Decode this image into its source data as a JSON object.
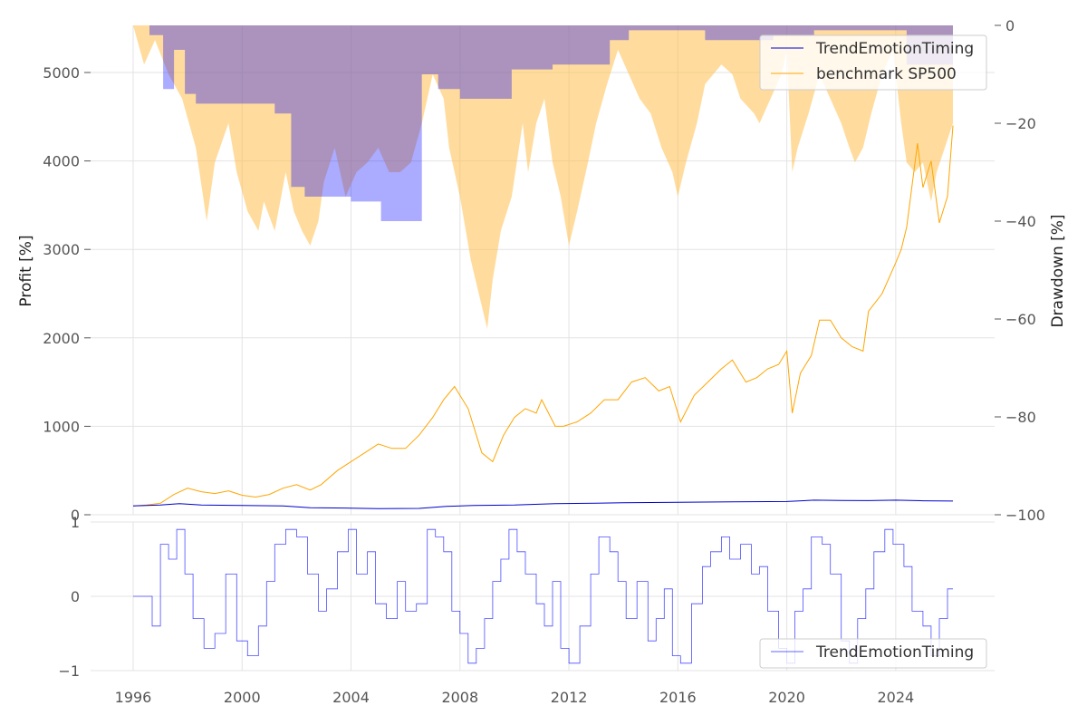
{
  "chart_data": [
    {
      "type": "line",
      "panel": "top",
      "ylabel_left": "Profit [%]",
      "ylabel_right": "Drawdown [%]",
      "ylim_left": [
        0,
        5500
      ],
      "yticks_left": [
        0,
        1000,
        2000,
        3000,
        4000,
        5000
      ],
      "ytick_labels_left": [
        "0",
        "1000",
        "2000",
        "3000",
        "4000",
        "5000"
      ],
      "ylim_right": [
        -100,
        0
      ],
      "yticks_right": [
        0,
        -20,
        -40,
        -60,
        -80,
        -100
      ],
      "ytick_labels_right": [
        "0",
        "−20",
        "−40",
        "−60",
        "−80",
        "−100"
      ],
      "xlim": [
        1996.0,
        2026.1
      ],
      "legend": "top-right",
      "series": [
        {
          "name": "TrendEmotionTiming",
          "color": "#0000cc",
          "x": [
            1996.0,
            1997.0,
            1997.7,
            1998.5,
            2000.0,
            2001.5,
            2002.5,
            2004.0,
            2005.0,
            2006.5,
            2007.5,
            2008.5,
            2010.0,
            2011.5,
            2013.0,
            2014.0,
            2016.0,
            2018.0,
            2020.0,
            2021.0,
            2022.0,
            2023.0,
            2024.0,
            2025.0,
            2026.1
          ],
          "values": [
            100,
            110,
            125,
            110,
            105,
            100,
            80,
            75,
            70,
            72,
            95,
            105,
            110,
            125,
            130,
            135,
            140,
            145,
            150,
            165,
            162,
            160,
            165,
            158,
            155
          ]
        },
        {
          "name": "benchmark SP500",
          "color": "#ffa500",
          "x": [
            1996.0,
            1996.5,
            1997.0,
            1997.5,
            1998.0,
            1998.5,
            1999.0,
            1999.5,
            2000.0,
            2000.5,
            2001.0,
            2001.5,
            2002.0,
            2002.5,
            2002.9,
            2003.5,
            2004.0,
            2004.5,
            2005.0,
            2005.5,
            2006.0,
            2006.5,
            2007.0,
            2007.4,
            2007.8,
            2008.3,
            2008.8,
            2009.2,
            2009.6,
            2010.0,
            2010.4,
            2010.8,
            2011.0,
            2011.5,
            2011.8,
            2012.3,
            2012.8,
            2013.3,
            2013.8,
            2014.3,
            2014.8,
            2015.3,
            2015.7,
            2016.1,
            2016.6,
            2017.1,
            2017.6,
            2018.0,
            2018.5,
            2018.9,
            2019.3,
            2019.7,
            2020.0,
            2020.2,
            2020.5,
            2020.9,
            2021.2,
            2021.6,
            2022.0,
            2022.4,
            2022.8,
            2023.0,
            2023.5,
            2024.0,
            2024.2,
            2024.4,
            2024.8,
            2025.0,
            2025.3,
            2025.6,
            2025.9,
            2026.1
          ],
          "values": [
            100,
            110,
            130,
            230,
            300,
            260,
            240,
            270,
            220,
            200,
            230,
            300,
            340,
            280,
            340,
            500,
            600,
            700,
            800,
            750,
            750,
            900,
            1100,
            1300,
            1450,
            1200,
            700,
            600,
            900,
            1100,
            1200,
            1150,
            1300,
            1000,
            1000,
            1050,
            1150,
            1300,
            1300,
            1500,
            1550,
            1400,
            1450,
            1050,
            1350,
            1500,
            1650,
            1750,
            1500,
            1550,
            1650,
            1700,
            1850,
            1150,
            1600,
            1800,
            2200,
            2200,
            2000,
            1900,
            1850,
            2300,
            2500,
            2850,
            3000,
            3250,
            4200,
            3700,
            4000,
            3300,
            3600,
            4400
          ]
        },
        {
          "name": "TrendEmotionTiming drawdown",
          "legend": false,
          "color": "#0000ff",
          "axis": "right",
          "x": [
            1996.0,
            1996.6,
            1996.6,
            1997.1,
            1997.1,
            1997.5,
            1997.5,
            1997.9,
            1997.9,
            1998.3,
            1998.3,
            2001.2,
            2001.2,
            2001.8,
            2001.8,
            2002.3,
            2002.3,
            2002.8,
            2002.8,
            2004.0,
            2004.0,
            2005.1,
            2005.1,
            2006.6,
            2006.6,
            2007.2,
            2007.2,
            2008.0,
            2008.0,
            2009.9,
            2009.9,
            2011.4,
            2011.4,
            2013.5,
            2013.5,
            2014.2,
            2014.2,
            2017.0,
            2017.0,
            2019.5,
            2019.5,
            2021.0,
            2021.0,
            2024.4,
            2024.4,
            2026.1
          ],
          "values": [
            0,
            0,
            -2,
            -2,
            -13,
            -13,
            -5,
            -5,
            -14,
            -14,
            -16,
            -16,
            -18,
            -18,
            -33,
            -33,
            -35,
            -35,
            -35,
            -35,
            -36,
            -36,
            -40,
            -40,
            -10,
            -10,
            -13,
            -13,
            -15,
            -15,
            -9,
            -9,
            -8,
            -8,
            -3,
            -3,
            -1,
            -1,
            -3,
            -3,
            -2,
            -2,
            -1,
            -1,
            -8,
            -8
          ]
        },
        {
          "name": "benchmark SP500 drawdown",
          "legend": false,
          "color": "#ffc04d",
          "axis": "right",
          "x": [
            1996.0,
            1996.4,
            1996.8,
            1997.3,
            1997.8,
            1998.3,
            1998.7,
            1999.0,
            1999.5,
            1999.8,
            2000.2,
            2000.6,
            2000.8,
            2001.2,
            2001.6,
            2001.9,
            2002.2,
            2002.5,
            2002.8,
            2003.0,
            2003.4,
            2003.8,
            2004.2,
            2004.6,
            2005.0,
            2005.4,
            2005.8,
            2006.2,
            2006.6,
            2007.0,
            2007.4,
            2007.6,
            2008.0,
            2008.4,
            2008.7,
            2009.0,
            2009.2,
            2009.5,
            2009.9,
            2010.3,
            2010.5,
            2010.8,
            2011.1,
            2011.4,
            2011.7,
            2012.0,
            2012.3,
            2012.7,
            2013.0,
            2013.4,
            2013.8,
            2014.2,
            2014.6,
            2015.0,
            2015.4,
            2015.8,
            2016.0,
            2016.3,
            2016.7,
            2017.0,
            2017.6,
            2018.0,
            2018.3,
            2018.8,
            2019.0,
            2019.4,
            2019.8,
            2020.0,
            2020.2,
            2020.4,
            2020.8,
            2021.2,
            2021.6,
            2022.0,
            2022.3,
            2022.5,
            2022.8,
            2023.1,
            2023.5,
            2023.9,
            2024.2,
            2024.4,
            2024.7,
            2025.0,
            2025.3,
            2025.5,
            2025.8,
            2026.1
          ],
          "values": [
            0,
            -8,
            -3,
            -10,
            -15,
            -25,
            -40,
            -28,
            -20,
            -30,
            -38,
            -42,
            -36,
            -42,
            -30,
            -38,
            -42,
            -45,
            -40,
            -32,
            -25,
            -35,
            -30,
            -28,
            -25,
            -30,
            -30,
            -28,
            -20,
            -10,
            -15,
            -25,
            -35,
            -48,
            -55,
            -62,
            -52,
            -42,
            -35,
            -20,
            -30,
            -20,
            -15,
            -28,
            -35,
            -45,
            -38,
            -28,
            -20,
            -12,
            -5,
            -10,
            -15,
            -18,
            -25,
            -30,
            -35,
            -28,
            -20,
            -12,
            -8,
            -10,
            -15,
            -18,
            -20,
            -15,
            -10,
            -5,
            -30,
            -25,
            -18,
            -10,
            -15,
            -20,
            -25,
            -28,
            -25,
            -18,
            -10,
            -5,
            -20,
            -28,
            -30,
            -28,
            -36,
            -30,
            -25,
            -20
          ]
        }
      ],
      "drawdown_fill_colors": {
        "strategy": "#aaaaff",
        "benchmark": "#ffe0aa",
        "overlap": "#c4a8ac"
      }
    },
    {
      "type": "line",
      "panel": "bottom",
      "ylim": [
        -1,
        1
      ],
      "yticks": [
        -1,
        0,
        1
      ],
      "ytick_labels": [
        "−1",
        "0",
        "1"
      ],
      "xlim": [
        1996.0,
        2026.1
      ],
      "xticks": [
        1996,
        2000,
        2004,
        2008,
        2012,
        2016,
        2020,
        2024
      ],
      "xtick_labels": [
        "1996",
        "2000",
        "2004",
        "2008",
        "2012",
        "2016",
        "2020",
        "2024"
      ],
      "legend": "bottom-right",
      "series": [
        {
          "name": "TrendEmotionTiming",
          "color": "#0000ff",
          "x": [
            1996.0,
            1996.5,
            1996.7,
            1997.0,
            1997.3,
            1997.6,
            1997.9,
            1998.2,
            1998.6,
            1999.0,
            1999.4,
            1999.8,
            2000.2,
            2000.6,
            2000.9,
            2001.2,
            2001.6,
            2002.0,
            2002.4,
            2002.8,
            2003.1,
            2003.5,
            2003.9,
            2004.2,
            2004.6,
            2004.9,
            2005.3,
            2005.7,
            2006.0,
            2006.4,
            2006.8,
            2007.1,
            2007.4,
            2007.7,
            2008.0,
            2008.3,
            2008.6,
            2008.9,
            2009.2,
            2009.5,
            2009.8,
            2010.1,
            2010.4,
            2010.8,
            2011.1,
            2011.4,
            2011.7,
            2012.0,
            2012.4,
            2012.8,
            2013.1,
            2013.5,
            2013.8,
            2014.1,
            2014.5,
            2014.9,
            2015.2,
            2015.5,
            2015.8,
            2016.1,
            2016.5,
            2016.9,
            2017.2,
            2017.6,
            2017.9,
            2018.3,
            2018.7,
            2019.0,
            2019.3,
            2019.7,
            2020.0,
            2020.3,
            2020.6,
            2020.9,
            2021.3,
            2021.6,
            2022.0,
            2022.3,
            2022.6,
            2022.9,
            2023.2,
            2023.6,
            2023.9,
            2024.3,
            2024.6,
            2025.0,
            2025.3,
            2025.6,
            2025.9,
            2026.1
          ],
          "values": [
            0,
            0,
            -0.4,
            0.7,
            0.5,
            0.9,
            0.3,
            -0.3,
            -0.7,
            -0.5,
            0.3,
            -0.6,
            -0.8,
            -0.4,
            0.2,
            0.7,
            0.9,
            0.8,
            0.3,
            -0.2,
            0.1,
            0.6,
            0.9,
            0.3,
            0.6,
            -0.1,
            -0.3,
            0.2,
            -0.2,
            -0.1,
            0.9,
            0.8,
            0.6,
            -0.2,
            -0.5,
            -0.9,
            -0.7,
            -0.3,
            0.2,
            0.5,
            0.9,
            0.6,
            0.3,
            -0.1,
            -0.4,
            0.2,
            -0.7,
            -0.9,
            -0.4,
            0.3,
            0.8,
            0.6,
            0.2,
            -0.3,
            0.2,
            -0.6,
            -0.3,
            0.1,
            -0.8,
            -0.9,
            -0.1,
            0.4,
            0.6,
            0.8,
            0.5,
            0.7,
            0.3,
            0.4,
            -0.2,
            -0.7,
            -0.9,
            -0.2,
            0.1,
            0.8,
            0.7,
            0.3,
            -0.6,
            -0.9,
            -0.3,
            0.1,
            0.6,
            0.9,
            0.7,
            0.4,
            -0.2,
            -0.4,
            -0.8,
            -0.3,
            0.1,
            0.1
          ]
        }
      ]
    }
  ]
}
